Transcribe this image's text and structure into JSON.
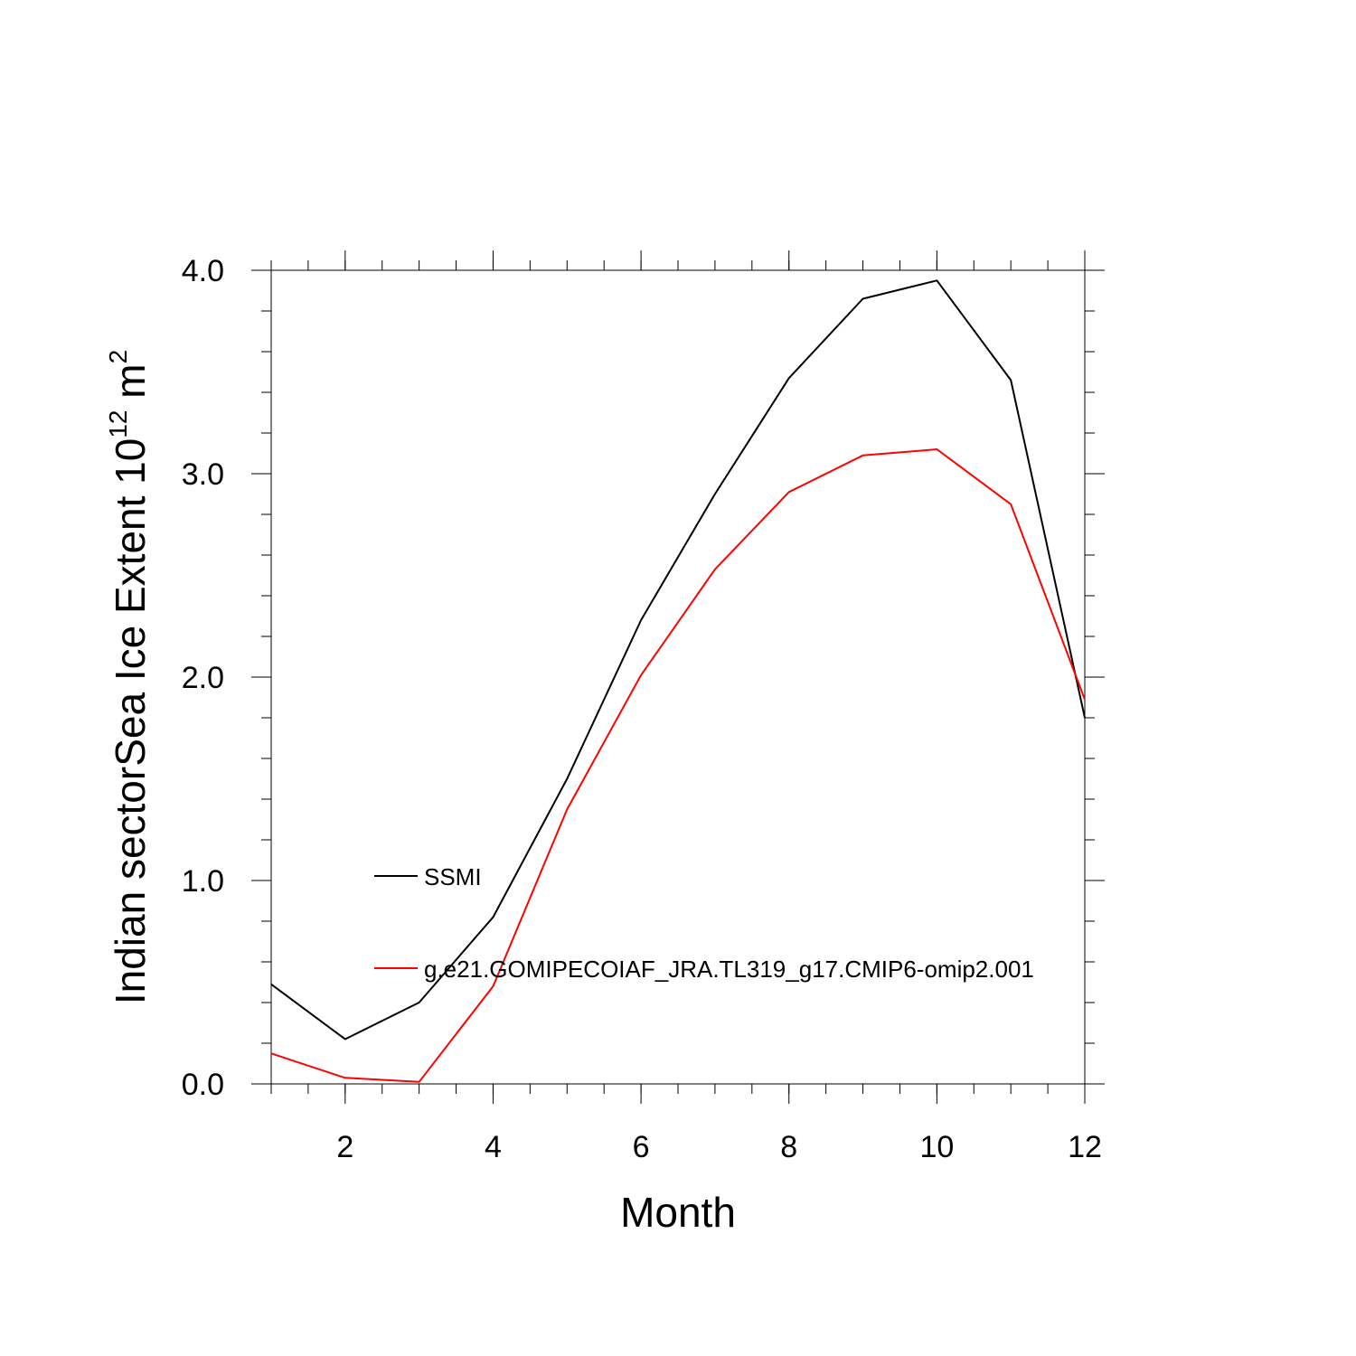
{
  "chart_data": {
    "type": "line",
    "x": [
      1,
      2,
      3,
      4,
      5,
      6,
      7,
      8,
      9,
      10,
      11,
      12
    ],
    "series": [
      {
        "name": "SSMI",
        "color": "#000000",
        "values": [
          0.49,
          0.22,
          0.4,
          0.82,
          1.5,
          2.28,
          2.9,
          3.47,
          3.86,
          3.95,
          3.46,
          1.8
        ]
      },
      {
        "name": "g.e21.GOMIPECOIAF_JRA.TL319_g17.CMIP6-omip2.001",
        "color": "#ff0000",
        "values": [
          0.15,
          0.03,
          0.01,
          0.48,
          1.35,
          2.01,
          2.53,
          2.91,
          3.09,
          3.12,
          2.85,
          1.89
        ]
      }
    ],
    "xlabel": "Month",
    "ylabel": {
      "main": "Indian sectorSea Ice Extent 10",
      "exp": "12",
      "unit": " m",
      "unit_exp": "2"
    },
    "xlim": [
      1,
      12
    ],
    "ylim": [
      0,
      4
    ],
    "xticks": [
      2,
      4,
      6,
      8,
      10,
      12
    ],
    "xtick_labels": [
      "2",
      "4",
      "6",
      "8",
      "10",
      "12"
    ],
    "yticks": [
      0,
      1,
      2,
      3,
      4
    ],
    "ytick_labels": [
      "0.0",
      "1.0",
      "2.0",
      "3.0",
      "4.0"
    ],
    "grid": false,
    "legend_position": "center-left"
  }
}
